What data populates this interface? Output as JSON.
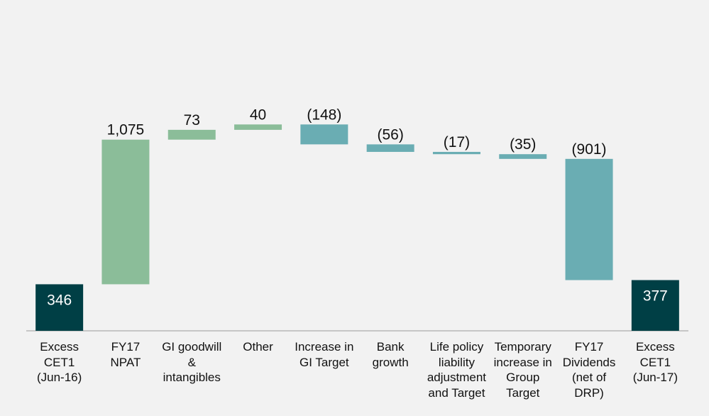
{
  "chart_data": {
    "type": "bar",
    "subtype": "waterfall",
    "title": "",
    "xlabel": "",
    "ylabel": "",
    "grid": false,
    "legend": "none",
    "categories": [
      "Excess CET1 (Jun-16)",
      "FY17 NPAT",
      "GI goodwill & intangibles",
      "Other",
      "Increase in GI Target",
      "Bank growth",
      "Life policy liability adjustment and Target",
      "Temporary increase in Group Target",
      "FY17 Dividends (net of DRP)",
      "Excess CET1 (Jun-17)"
    ],
    "category_lines": [
      [
        "Excess",
        "CET1",
        "(Jun-16)"
      ],
      [
        "FY17",
        "NPAT"
      ],
      [
        "GI goodwill",
        "&",
        "intangibles"
      ],
      [
        "Other"
      ],
      [
        "Increase in",
        "GI Target"
      ],
      [
        "Bank",
        "growth"
      ],
      [
        "Life policy",
        "liability",
        "adjustment",
        "and Target"
      ],
      [
        "Temporary",
        "increase in",
        "Group",
        "Target"
      ],
      [
        "FY17",
        "Dividends",
        "(net of",
        "DRP)"
      ],
      [
        "Excess",
        "CET1",
        "(Jun-17)"
      ]
    ],
    "values": [
      346,
      1075,
      73,
      40,
      -148,
      -56,
      -17,
      -35,
      -901,
      377
    ],
    "labels": [
      "346",
      "1,075",
      "73",
      "40",
      "(148)",
      "(56)",
      "(17)",
      "(35)",
      "(901)",
      "377"
    ],
    "kinds": [
      "total",
      "increase",
      "increase",
      "increase",
      "decrease",
      "decrease",
      "decrease",
      "decrease",
      "decrease",
      "total"
    ],
    "colors": {
      "total": "#003f45",
      "increase": "#8bbd99",
      "decrease": "#6aadb3",
      "axis": "#999999",
      "label": "#111111",
      "total_label": "#ffffff"
    }
  }
}
